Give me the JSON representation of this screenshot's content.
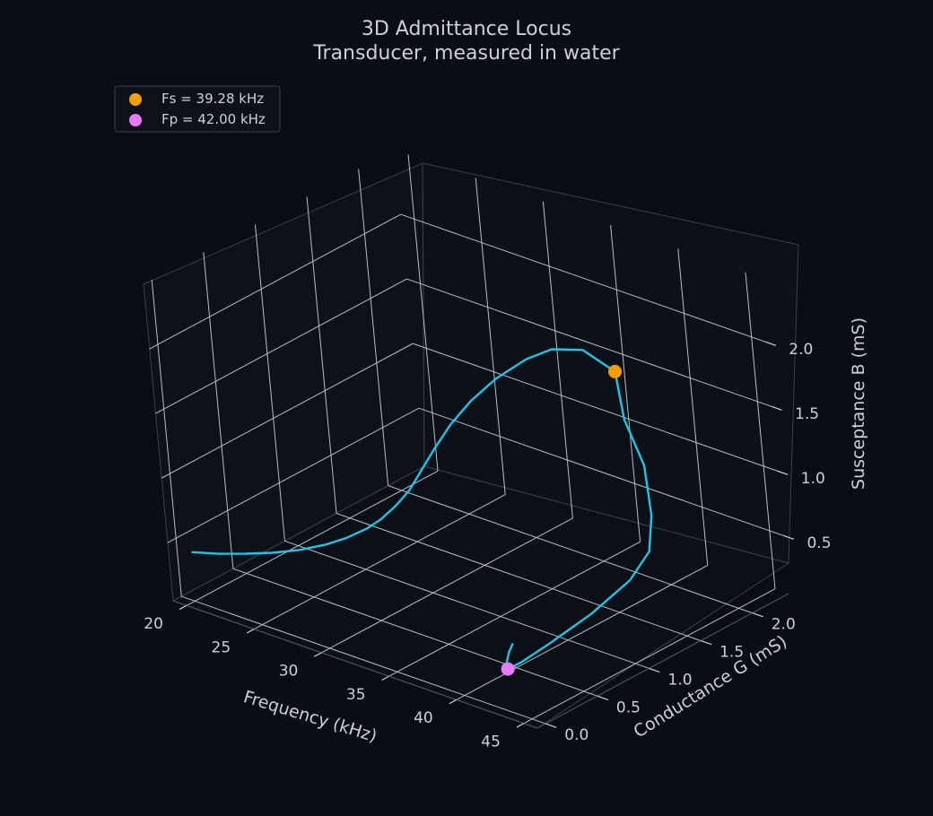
{
  "chart_data": {
    "type": "line",
    "projection": "3d",
    "title": "3D Admittance Locus",
    "subtitle": "Transducer, measured in water",
    "x_axis": {
      "label": "Frequency (kHz)",
      "range": [
        19,
        46
      ],
      "ticks": [
        "20",
        "25",
        "30",
        "35",
        "40",
        "45"
      ]
    },
    "y_axis": {
      "label": "Conductance G (mS)",
      "range": [
        -0.08,
        2.35
      ],
      "ticks": [
        "0.0",
        "0.5",
        "1.0",
        "1.5",
        "2.0"
      ]
    },
    "z_axis": {
      "label": "Susceptance B (mS)",
      "range": [
        0.05,
        2.5
      ],
      "ticks": [
        "0.5",
        "1.0",
        "1.5",
        "2.0"
      ]
    },
    "grid": true,
    "legend_position": "top-left",
    "series": [
      {
        "type": "line",
        "color": "#22c3e6",
        "points": [
          [
            20.0,
            0.02,
            0.42
          ],
          [
            22.0,
            0.02,
            0.48
          ],
          [
            24.0,
            0.03,
            0.55
          ],
          [
            26.0,
            0.03,
            0.63
          ],
          [
            28.0,
            0.04,
            0.72
          ],
          [
            30.0,
            0.05,
            0.83
          ],
          [
            31.5,
            0.06,
            0.93
          ],
          [
            33.0,
            0.08,
            1.05
          ],
          [
            34.0,
            0.1,
            1.15
          ],
          [
            35.0,
            0.13,
            1.28
          ],
          [
            35.8,
            0.17,
            1.41
          ],
          [
            36.4,
            0.21,
            1.55
          ],
          [
            37.0,
            0.29,
            1.72
          ],
          [
            37.5,
            0.4,
            1.88
          ],
          [
            38.0,
            0.55,
            2.02
          ],
          [
            38.4,
            0.75,
            2.12
          ],
          [
            38.8,
            1.0,
            2.18
          ],
          [
            39.0,
            1.22,
            2.17
          ],
          [
            39.2,
            1.48,
            2.06
          ],
          [
            39.28,
            1.75,
            1.78
          ],
          [
            39.4,
            1.78,
            1.4
          ],
          [
            39.6,
            1.9,
            1.0
          ],
          [
            39.8,
            1.9,
            0.62
          ],
          [
            40.2,
            1.8,
            0.4
          ],
          [
            40.6,
            1.55,
            0.3
          ],
          [
            41.0,
            1.12,
            0.24
          ],
          [
            41.4,
            0.65,
            0.22
          ],
          [
            41.7,
            0.35,
            0.22
          ],
          [
            42.0,
            0.18,
            0.25
          ],
          [
            42.3,
            0.14,
            0.33
          ],
          [
            42.7,
            0.12,
            0.43
          ],
          [
            43.2,
            0.1,
            0.52
          ]
        ]
      }
    ],
    "markers": [
      {
        "label": "Fs = 39.28 kHz",
        "color": "#f59e0b",
        "x": 39.28,
        "y": 1.75,
        "z": 1.78
      },
      {
        "label": "Fp = 42.00 kHz",
        "color": "#e879f9",
        "x": 42.0,
        "y": 0.18,
        "z": 0.25
      }
    ]
  }
}
